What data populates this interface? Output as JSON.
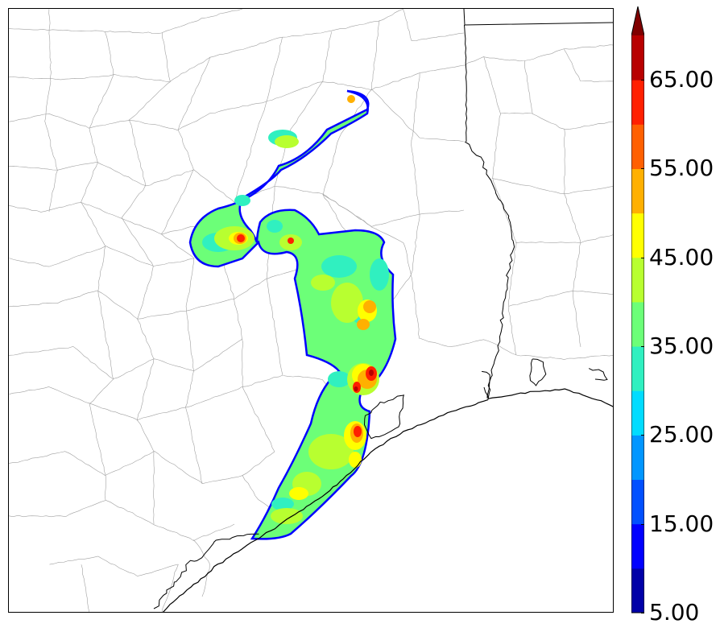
{
  "colorbar": {
    "labels": [
      "5.00",
      "15.00",
      "25.00",
      "35.00",
      "45.00",
      "55.00",
      "65.00"
    ],
    "levels": [
      5,
      10,
      15,
      20,
      25,
      30,
      35,
      40,
      45,
      50,
      55,
      60,
      65,
      70
    ],
    "colors": [
      "#0000a8",
      "#0000ff",
      "#0050ff",
      "#0096ff",
      "#00dcff",
      "#30f0c0",
      "#6cff78",
      "#b8ff30",
      "#ffff00",
      "#ffb000",
      "#ff6000",
      "#ff2000",
      "#b80000"
    ],
    "extend_color": "#800000"
  },
  "map": {
    "county_line_color": "#a0a0a0",
    "coast_color": "#000000",
    "field_colors": {
      "outline": "#0000ff",
      "base": "#6cff78",
      "light": "#30f0c0",
      "mid": "#b8ff30",
      "high": "#ffff00",
      "orange": "#ffb000",
      "red": "#ff2000",
      "darkred": "#b80000"
    }
  }
}
